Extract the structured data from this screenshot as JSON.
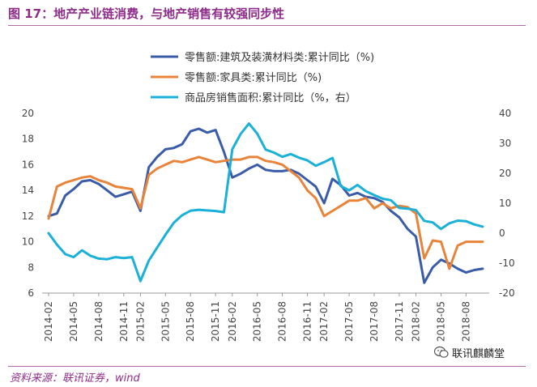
{
  "title": "图 17：地产产业链消费，与地产销售有较强同步性",
  "source": "资料来源：联讯证券，wind",
  "watermark": "联讯麒麟堂",
  "chart_data": {
    "type": "line",
    "x": [
      "2014-02",
      "2014-03",
      "2014-04",
      "2014-05",
      "2014-06",
      "2014-07",
      "2014-08",
      "2014-09",
      "2014-10",
      "2014-11",
      "2014-12",
      "2015-02",
      "2015-03",
      "2015-04",
      "2015-05",
      "2015-06",
      "2015-07",
      "2015-08",
      "2015-09",
      "2015-10",
      "2015-11",
      "2015-12",
      "2016-02",
      "2016-03",
      "2016-04",
      "2016-05",
      "2016-06",
      "2016-07",
      "2016-08",
      "2016-09",
      "2016-10",
      "2016-11",
      "2016-12",
      "2017-02",
      "2017-03",
      "2017-04",
      "2017-05",
      "2017-06",
      "2017-07",
      "2017-08",
      "2017-09",
      "2017-10",
      "2017-11",
      "2017-12",
      "2018-02",
      "2018-03",
      "2018-04",
      "2018-05",
      "2018-06",
      "2018-07",
      "2018-08",
      "2018-09",
      "2018-10"
    ],
    "x_tick_labels": [
      "2014-02",
      "2014-05",
      "2014-08",
      "2014-11",
      "2015-02",
      "2015-05",
      "2015-08",
      "2015-11",
      "2016-02",
      "2016-05",
      "2016-08",
      "2016-11",
      "2017-02",
      "2017-05",
      "2017-08",
      "2017-11",
      "2018-02",
      "2018-05",
      "2018-08"
    ],
    "y_left": {
      "min": 6,
      "max": 20,
      "ticks": [
        6,
        8,
        10,
        12,
        14,
        16,
        18,
        20
      ]
    },
    "y_right": {
      "min": -20,
      "max": 40,
      "ticks": [
        -20,
        -10,
        0,
        10,
        20,
        30,
        40
      ]
    },
    "legend_position": "top-center",
    "grid": false,
    "series": [
      {
        "name": "零售额:建筑及装潢材料类:累计同比（%)",
        "axis": "left",
        "color": "#3a5ba8",
        "values": [
          12.0,
          12.2,
          13.6,
          14.1,
          14.7,
          14.8,
          14.5,
          14.0,
          13.5,
          13.7,
          13.9,
          12.4,
          15.8,
          16.6,
          17.2,
          17.3,
          17.6,
          18.6,
          18.8,
          18.5,
          18.7,
          17.0,
          15.0,
          15.3,
          15.7,
          16.0,
          15.6,
          15.5,
          15.5,
          15.6,
          15.3,
          14.8,
          14.3,
          13.0,
          14.9,
          14.4,
          13.6,
          13.8,
          13.5,
          13.4,
          13.1,
          12.4,
          11.9,
          11.0,
          10.4,
          6.8,
          8.0,
          8.6,
          8.3,
          7.9,
          7.6,
          7.8,
          7.9
        ]
      },
      {
        "name": "零售额:家具类:累计同比（%)",
        "axis": "left",
        "color": "#e8843a",
        "values": [
          11.8,
          14.3,
          14.6,
          14.8,
          15.0,
          15.1,
          14.8,
          14.6,
          14.3,
          14.2,
          14.1,
          12.6,
          15.2,
          15.7,
          16.0,
          16.3,
          16.2,
          16.4,
          16.6,
          16.4,
          16.2,
          16.3,
          16.4,
          16.4,
          16.6,
          16.6,
          16.3,
          16.2,
          16.0,
          15.5,
          15.0,
          14.0,
          13.4,
          12.0,
          12.4,
          12.8,
          13.2,
          13.2,
          13.4,
          12.6,
          13.0,
          12.6,
          12.8,
          12.7,
          12.2,
          8.7,
          10.1,
          10.0,
          7.9,
          9.7,
          10.0,
          10.0,
          10.0
        ]
      },
      {
        "name": "商品房销售面积:累计同比（%，右）",
        "axis": "right",
        "color": "#1ab0d8",
        "values": [
          0.0,
          -3.8,
          -7.0,
          -8.0,
          -5.7,
          -7.5,
          -8.5,
          -8.7,
          -8.0,
          -8.3,
          -8.0,
          -16.0,
          -9.2,
          -4.8,
          -0.5,
          3.5,
          6.0,
          7.5,
          7.8,
          7.6,
          7.4,
          7.0,
          28.0,
          33.1,
          36.6,
          33.2,
          27.9,
          26.9,
          25.5,
          26.4,
          25.2,
          24.3,
          22.5,
          23.7,
          25.1,
          15.7,
          14.3,
          16.1,
          14.0,
          12.7,
          11.5,
          11.0,
          8.4,
          8.2,
          7.7,
          4.1,
          3.6,
          1.4,
          3.3,
          4.2,
          4.0,
          2.9,
          2.2
        ]
      }
    ]
  }
}
